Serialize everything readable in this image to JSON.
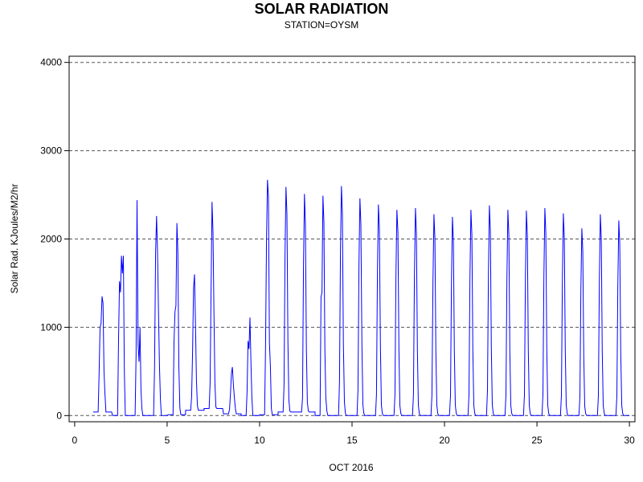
{
  "title": "SOLAR RADIATION",
  "subtitle": "STATION=OYSM",
  "chart_data": {
    "type": "line",
    "title": "SOLAR RADIATION",
    "subtitle": "STATION=OYSM",
    "xlabel": "OCT 2016",
    "ylabel": "Solar Rad. KJoules/M2/hr",
    "xlim": [
      -0.3,
      30.3
    ],
    "ylim": [
      -70,
      4070
    ],
    "x_ticks": [
      0,
      5,
      10,
      15,
      20,
      25,
      30
    ],
    "y_ticks": [
      0,
      1000,
      2000,
      3000,
      4000
    ],
    "grid": "horizontal dashed at y ticks",
    "line_color": "#0000ff",
    "series": [
      {
        "days": [
          {
            "start": 1.05,
            "peak": 1350,
            "shape": [
              0,
              0.35,
              0.74,
              0.77,
              1.0,
              0.94,
              0.37,
              0.18,
              0
            ],
            "base": 40
          },
          {
            "start": 2.1,
            "peak": 1810,
            "shape": [
              0,
              0.48,
              0.84,
              0.77,
              1.0,
              0.89,
              1.0,
              0.28,
              0
            ],
            "base": 0
          },
          {
            "start": 3.05,
            "peak": 2440,
            "shape": [
              0,
              0.28,
              1.0,
              0.33,
              0.25,
              0.41,
              0.12,
              0.03,
              0
            ],
            "base": 0
          },
          {
            "start": 4.05,
            "peak": 2260,
            "shape": [
              0,
              0.24,
              0.82,
              1.0,
              0.82,
              0.52,
              0.25,
              0.08,
              0
            ],
            "base": 0
          },
          {
            "start": 5.1,
            "peak": 2180,
            "shape": [
              0,
              0.38,
              0.54,
              0.57,
              1.0,
              0.85,
              0.26,
              0.04,
              0
            ],
            "base": 10
          },
          {
            "start": 6.05,
            "peak": 1600,
            "shape": [
              0,
              0.13,
              0.45,
              0.9,
              1.0,
              0.65,
              0.25,
              0.07,
              0
            ],
            "base": 60
          },
          {
            "start": 7.05,
            "peak": 2420,
            "shape": [
              0,
              0.15,
              0.58,
              1.0,
              0.86,
              0.48,
              0.15,
              0.04,
              0
            ],
            "base": 80
          },
          {
            "start": 8.1,
            "peak": 550,
            "shape": [
              0,
              0.12,
              0.43,
              0.86,
              1.0,
              0.63,
              0.37,
              0.15,
              0
            ],
            "base": 20
          },
          {
            "start": 9.05,
            "peak": 1110,
            "shape": [
              0,
              0.24,
              0.76,
              0.68,
              1.0,
              0.55,
              0.18,
              0,
              0
            ],
            "base": 0
          },
          {
            "start": 10.05,
            "peak": 2670,
            "shape": [
              0,
              0.3,
              0.75,
              1.0,
              0.93,
              0.31,
              0.21,
              0.03,
              0
            ],
            "base": 10
          },
          {
            "start": 11.05,
            "peak": 2590,
            "shape": [
              0,
              0.13,
              0.7,
              1.0,
              0.88,
              0.33,
              0.07,
              0.02,
              0
            ],
            "base": 40
          },
          {
            "start": 12.05,
            "peak": 2510,
            "shape": [
              0,
              0.08,
              0.68,
              1.0,
              0.86,
              0.3,
              0.06,
              0.02,
              0
            ],
            "base": 40
          },
          {
            "start": 13.05,
            "peak": 2490,
            "shape": [
              0,
              0.54,
              0.56,
              1.0,
              0.88,
              0.3,
              0.08,
              0.02,
              0
            ],
            "base": 0
          },
          {
            "start": 14.05,
            "peak": 2600,
            "shape": [
              0,
              0.15,
              0.72,
              1.0,
              0.88,
              0.32,
              0.06,
              0.01,
              0
            ],
            "base": 0
          },
          {
            "start": 15.05,
            "peak": 2460,
            "shape": [
              0,
              0.12,
              0.69,
              1.0,
              0.88,
              0.32,
              0.05,
              0.01,
              0
            ],
            "base": 0
          },
          {
            "start": 16.05,
            "peak": 2390,
            "shape": [
              0,
              0.1,
              0.68,
              1.0,
              0.89,
              0.33,
              0.05,
              0.01,
              0
            ],
            "base": 0
          },
          {
            "start": 17.05,
            "peak": 2330,
            "shape": [
              0,
              0.1,
              0.67,
              1.0,
              0.89,
              0.33,
              0.05,
              0.01,
              0
            ],
            "base": 0
          },
          {
            "start": 18.05,
            "peak": 2350,
            "shape": [
              0,
              0.1,
              0.67,
              1.0,
              0.88,
              0.32,
              0.05,
              0.01,
              0
            ],
            "base": 0
          },
          {
            "start": 19.05,
            "peak": 2280,
            "shape": [
              0,
              0.1,
              0.67,
              1.0,
              0.88,
              0.32,
              0.05,
              0.01,
              0
            ],
            "base": 0
          },
          {
            "start": 20.05,
            "peak": 2250,
            "shape": [
              0,
              0.1,
              0.67,
              1.0,
              0.88,
              0.32,
              0.05,
              0.01,
              0
            ],
            "base": 0
          },
          {
            "start": 21.05,
            "peak": 2330,
            "shape": [
              0,
              0.1,
              0.67,
              1.0,
              0.88,
              0.32,
              0.05,
              0.01,
              0
            ],
            "base": 0
          },
          {
            "start": 22.05,
            "peak": 2380,
            "shape": [
              0,
              0.12,
              0.68,
              1.0,
              0.88,
              0.32,
              0.05,
              0.01,
              0
            ],
            "base": 0
          },
          {
            "start": 23.05,
            "peak": 2330,
            "shape": [
              0,
              0.1,
              0.67,
              1.0,
              0.88,
              0.32,
              0.05,
              0.01,
              0
            ],
            "base": 0
          },
          {
            "start": 24.05,
            "peak": 2320,
            "shape": [
              0,
              0.1,
              0.67,
              1.0,
              0.88,
              0.32,
              0.05,
              0.01,
              0
            ],
            "base": 0
          },
          {
            "start": 25.05,
            "peak": 2350,
            "shape": [
              0,
              0.1,
              0.67,
              1.0,
              0.88,
              0.32,
              0.05,
              0.01,
              0
            ],
            "base": 0
          },
          {
            "start": 26.05,
            "peak": 2290,
            "shape": [
              0,
              0.1,
              0.67,
              1.0,
              0.88,
              0.32,
              0.05,
              0.01,
              0
            ],
            "base": 0
          },
          {
            "start": 27.05,
            "peak": 2120,
            "shape": [
              0,
              0.1,
              0.67,
              1.0,
              0.88,
              0.32,
              0.05,
              0.01,
              0
            ],
            "base": 0
          },
          {
            "start": 28.05,
            "peak": 2280,
            "shape": [
              0,
              0.1,
              0.67,
              1.0,
              0.88,
              0.32,
              0.05,
              0.01,
              0
            ],
            "base": 0
          },
          {
            "start": 29.05,
            "peak": 2210,
            "shape": [
              0,
              0.1,
              0.67,
              1.0,
              0.88,
              0.32,
              0.05,
              0.01,
              0
            ],
            "base": 0
          }
        ]
      }
    ]
  }
}
